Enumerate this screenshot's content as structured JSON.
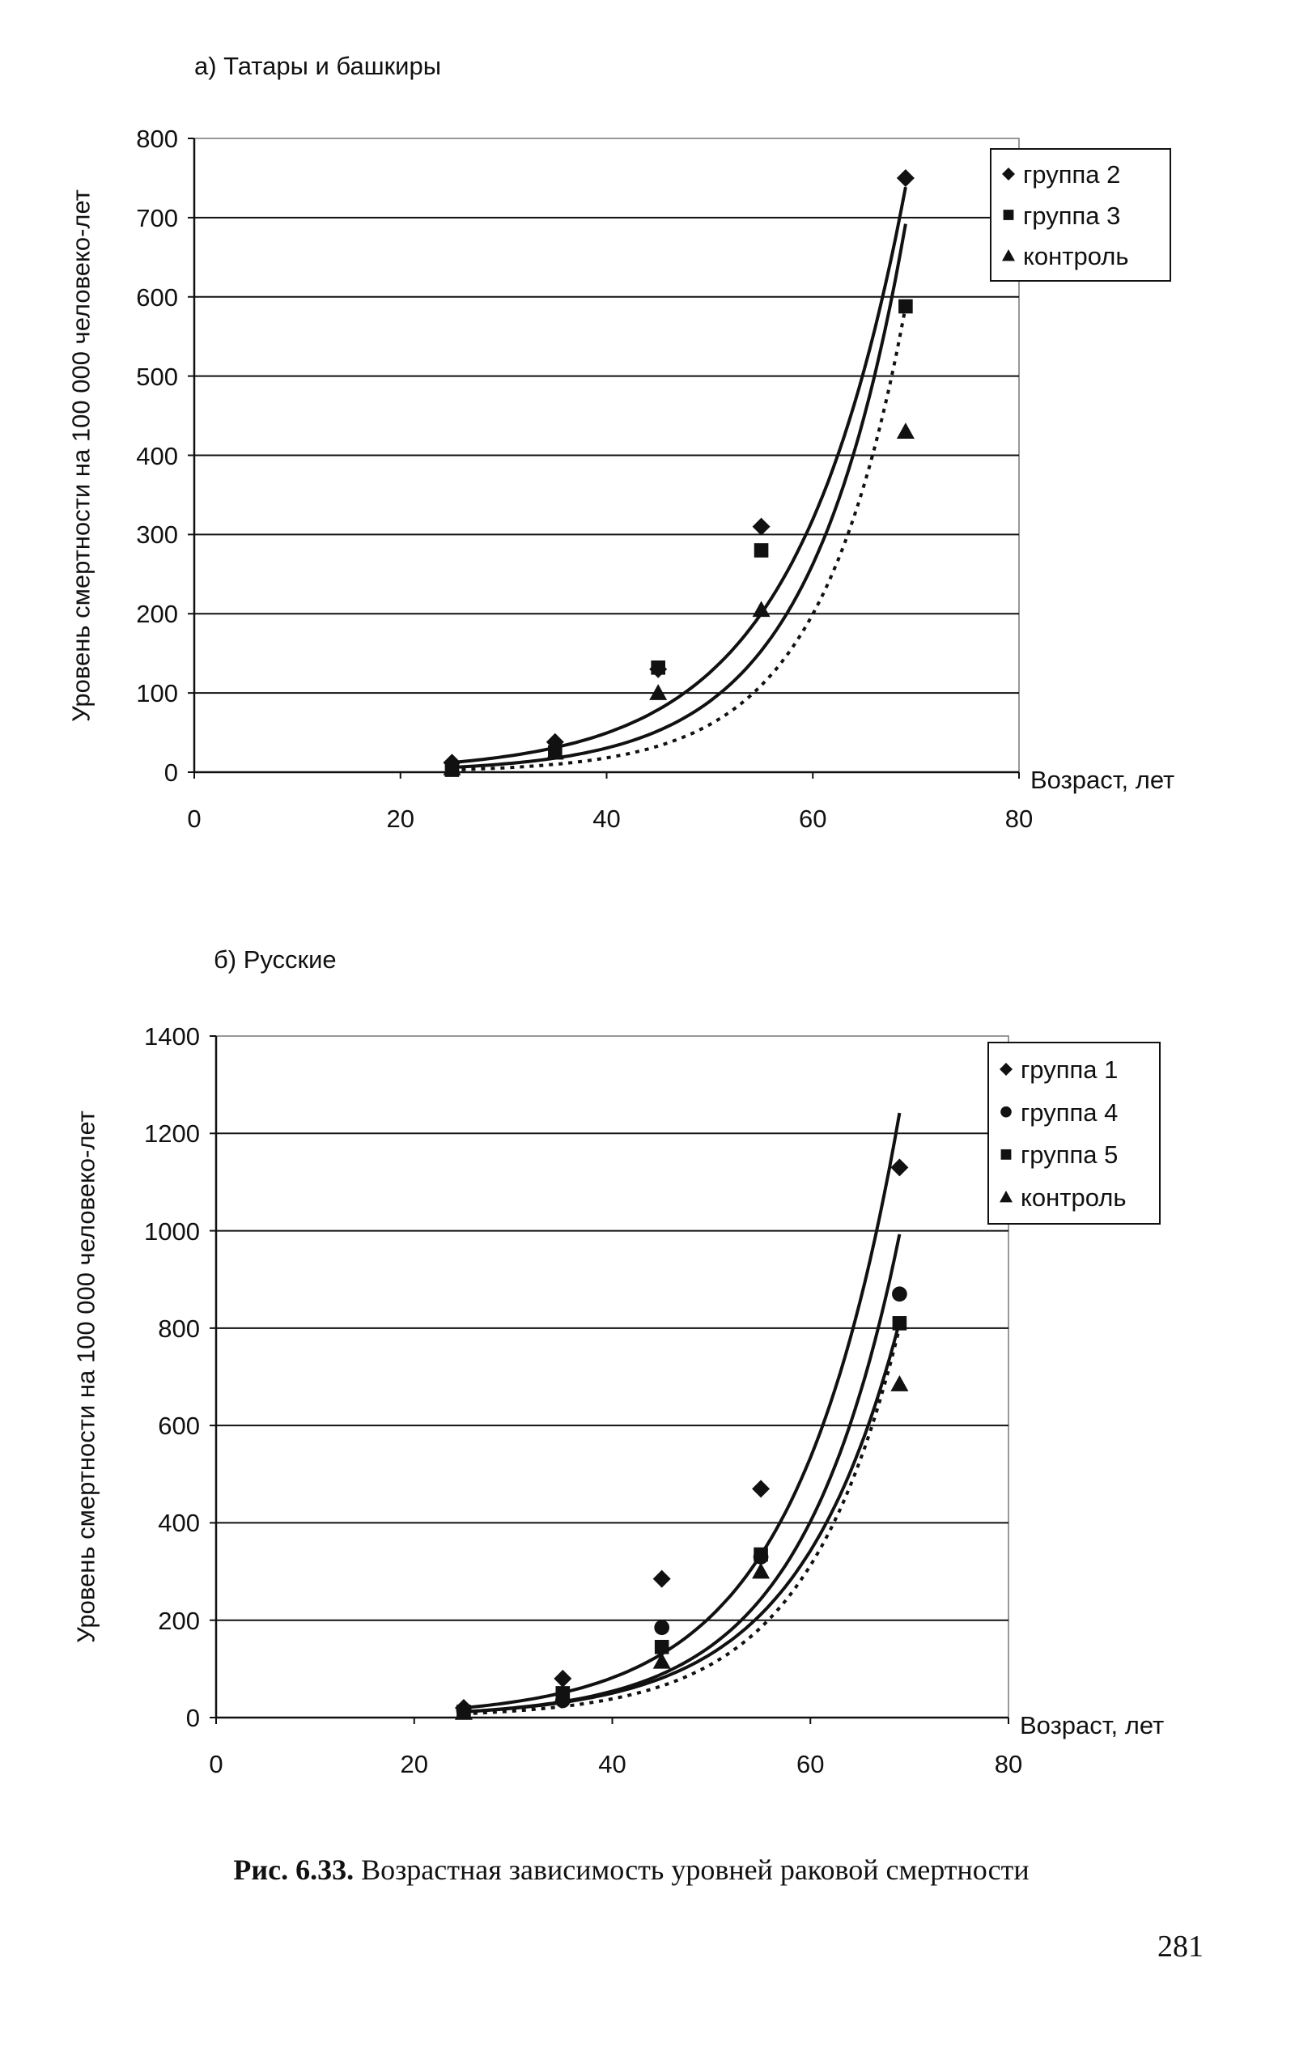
{
  "chart_data": [
    {
      "type": "scatter",
      "title": "а) Татары и башкиры",
      "xlabel": "Возраст, лет",
      "ylabel": "Уровень смертности на 100 000 человеко-лет",
      "xlim": [
        0,
        80
      ],
      "ylim": [
        0,
        800
      ],
      "xticks": [
        0,
        20,
        40,
        60,
        80
      ],
      "yticks": [
        0,
        100,
        200,
        300,
        400,
        500,
        600,
        700,
        800
      ],
      "grid": "horizontal",
      "legend_position": "top-right",
      "x": [
        25,
        35,
        45,
        55,
        69
      ],
      "series": [
        {
          "name": "группа 2",
          "marker": "diamond",
          "values": [
            12,
            38,
            130,
            310,
            750
          ],
          "trend": {
            "a": 1.19,
            "b": 0.0932,
            "style": "solid"
          }
        },
        {
          "name": "группа 3",
          "marker": "square",
          "values": [
            3,
            25,
            132,
            280,
            588
          ],
          "trend": {
            "a": 0.41,
            "b": 0.1077,
            "style": "solid"
          }
        },
        {
          "name": "контроль",
          "marker": "triangle",
          "values": [
            5,
            25,
            100,
            205,
            430
          ],
          "trend": {
            "a": 0.149,
            "b": 0.12,
            "style": "dotted"
          }
        }
      ]
    },
    {
      "type": "scatter",
      "title": "б) Русские",
      "xlabel": "Возраст, лет",
      "ylabel": "Уровень смертности на 100 000 человеко-лет",
      "xlim": [
        0,
        80
      ],
      "ylim": [
        0,
        1400
      ],
      "xticks": [
        0,
        20,
        40,
        60,
        80
      ],
      "yticks": [
        0,
        200,
        400,
        600,
        800,
        1000,
        1200,
        1400
      ],
      "grid": "horizontal",
      "legend_position": "top-right",
      "x": [
        25,
        35,
        45,
        55,
        69
      ],
      "series": [
        {
          "name": "группа 1",
          "marker": "diamond",
          "values": [
            20,
            80,
            285,
            470,
            1130
          ],
          "trend": {
            "a": 1.92,
            "b": 0.0938,
            "style": "solid"
          }
        },
        {
          "name": "группа 4",
          "marker": "circle",
          "values": [
            15,
            35,
            185,
            330,
            870
          ],
          "trend": {
            "a": 0.98,
            "b": 0.1003,
            "style": "solid"
          }
        },
        {
          "name": "группа 5",
          "marker": "square",
          "values": [
            12,
            50,
            145,
            335,
            810
          ],
          "trend": {
            "a": 1.08,
            "b": 0.096,
            "style": "solid"
          }
        },
        {
          "name": "контроль",
          "marker": "triangle",
          "values": [
            10,
            45,
            115,
            300,
            685
          ],
          "trend": {
            "a": 0.584,
            "b": 0.1047,
            "style": "dotted"
          }
        }
      ]
    }
  ],
  "caption": {
    "label": "Рис. 6.33.",
    "text": " Возрастная зависимость уровней раковой смертности"
  },
  "page_number": "281"
}
